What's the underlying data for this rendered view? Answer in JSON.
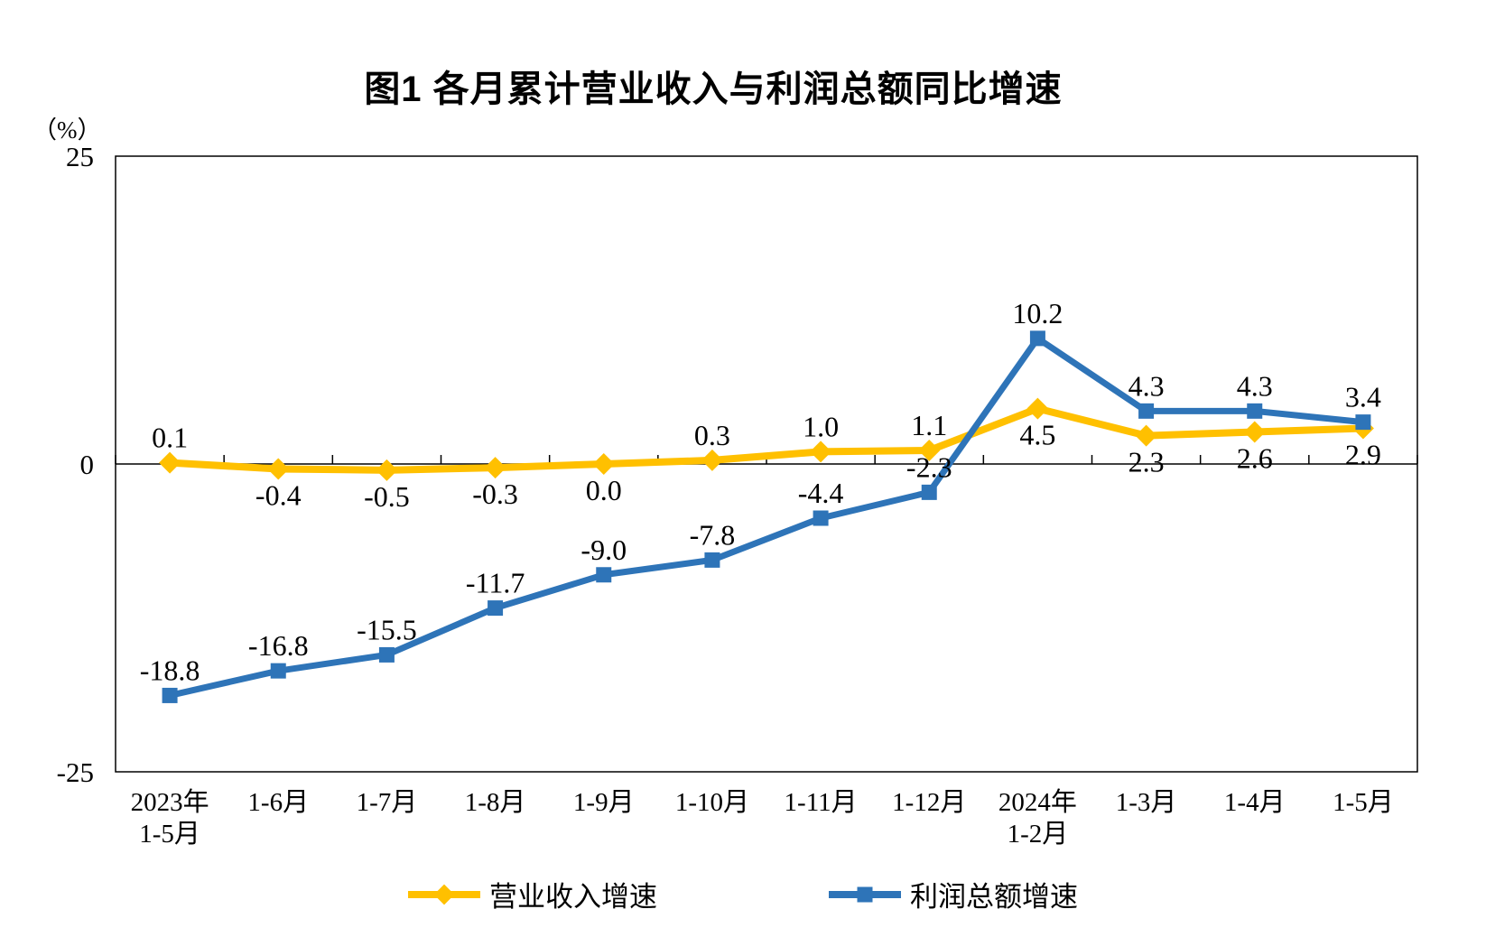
{
  "chart_data": {
    "type": "line",
    "title": "图1 各月累计营业收入与利润总额同比增速",
    "unit_label": "（%）",
    "categories": [
      [
        "2023年",
        "1-5月"
      ],
      [
        "1-6月",
        ""
      ],
      [
        "1-7月",
        ""
      ],
      [
        "1-8月",
        ""
      ],
      [
        "1-9月",
        ""
      ],
      [
        "1-10月",
        ""
      ],
      [
        "1-11月",
        ""
      ],
      [
        "1-12月",
        ""
      ],
      [
        "2024年",
        "1-2月"
      ],
      [
        "1-3月",
        ""
      ],
      [
        "1-4月",
        ""
      ],
      [
        "1-5月",
        ""
      ]
    ],
    "series": [
      {
        "id": "revenue-growth",
        "name": "营业收入增速",
        "color": "#FFC000",
        "marker": "diamond",
        "values": [
          0.1,
          -0.4,
          -0.5,
          -0.3,
          0.0,
          0.3,
          1.0,
          1.1,
          4.5,
          2.3,
          2.6,
          2.9
        ],
        "label_side": [
          "above",
          "below",
          "below",
          "below",
          "below",
          "above",
          "above",
          "above",
          "below",
          "below",
          "below",
          "below"
        ]
      },
      {
        "id": "profit-growth",
        "name": "利润总额增速",
        "color": "#2E74B8",
        "marker": "square",
        "values": [
          -18.8,
          -16.8,
          -15.5,
          -11.7,
          -9.0,
          -7.8,
          -4.4,
          -2.3,
          10.2,
          4.3,
          4.3,
          3.4
        ],
        "label_side": [
          "above",
          "above",
          "above",
          "above",
          "above",
          "above",
          "above",
          "above",
          "above",
          "above",
          "above",
          "above"
        ]
      }
    ],
    "y_axis": {
      "min": -25,
      "max": 25,
      "tick_labels": [
        25,
        0,
        -25
      ]
    },
    "x_axis": {
      "line_at": 0,
      "ticks": "category-boundaries"
    },
    "grid": false,
    "legend_position": "bottom",
    "axis_color": "#000000",
    "label_decimals": 1
  }
}
